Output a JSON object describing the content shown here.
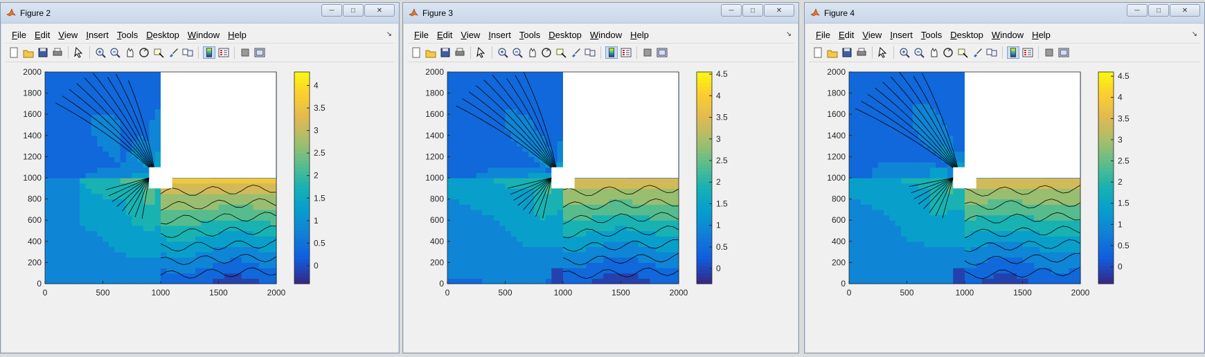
{
  "menu_items": [
    "File",
    "Edit",
    "View",
    "Insert",
    "Tools",
    "Desktop",
    "Window",
    "Help"
  ],
  "toolbar_icons": [
    "new-figure-icon",
    "open-file-icon",
    "save-icon",
    "print-icon",
    "select-arrow-icon",
    "zoom-in-icon",
    "zoom-out-icon",
    "pan-icon",
    "rotate-3d-icon",
    "data-cursor-icon",
    "brush-icon",
    "link-plot-icon",
    "colorbar-icon",
    "legend-icon",
    "hide-plot-tools-icon",
    "show-plot-tools-icon"
  ],
  "windows": [
    {
      "title": "Figure 2",
      "chart_data": {
        "type": "contour",
        "x_ticks": [
          "0",
          "500",
          "1000",
          "1500",
          "2000"
        ],
        "y_ticks": [
          "0",
          "200",
          "400",
          "600",
          "800",
          "1000",
          "1200",
          "1400",
          "1600",
          "1800",
          "2000"
        ],
        "xlim": [
          0,
          2000
        ],
        "ylim": [
          0,
          2000
        ],
        "colorbar_ticks": [
          "0",
          "0.5",
          "1",
          "1.5",
          "2",
          "2.5",
          "3",
          "3.5",
          "4"
        ],
        "colorbar_range": [
          -0.4,
          4.3
        ],
        "colormap": "parula",
        "blank_regions": [
          [
            1000,
            2000,
            1000,
            2000
          ],
          [
            900,
            1000,
            900,
            1100
          ],
          [
            1000,
            1100,
            900,
            1000
          ]
        ]
      }
    },
    {
      "title": "Figure 3",
      "chart_data": {
        "type": "contour",
        "x_ticks": [
          "0",
          "500",
          "1000",
          "1500",
          "2000"
        ],
        "y_ticks": [
          "0",
          "200",
          "400",
          "600",
          "800",
          "1000",
          "1200",
          "1400",
          "1600",
          "1800",
          "2000"
        ],
        "xlim": [
          0,
          2000
        ],
        "ylim": [
          0,
          2000
        ],
        "colorbar_ticks": [
          "0",
          "0.5",
          "1",
          "1.5",
          "2",
          "2.5",
          "3",
          "3.5",
          "4",
          "4.5"
        ],
        "colorbar_range": [
          -0.35,
          4.55
        ],
        "colormap": "parula",
        "blank_regions": [
          [
            1000,
            2000,
            1000,
            2000
          ],
          [
            900,
            1000,
            900,
            1100
          ],
          [
            1000,
            1100,
            900,
            1000
          ]
        ]
      }
    },
    {
      "title": "Figure 4",
      "chart_data": {
        "type": "contour",
        "x_ticks": [
          "0",
          "500",
          "1000",
          "1500",
          "2000"
        ],
        "y_ticks": [
          "0",
          "200",
          "400",
          "600",
          "800",
          "1000",
          "1200",
          "1400",
          "1600",
          "1800",
          "2000"
        ],
        "xlim": [
          0,
          2000
        ],
        "ylim": [
          0,
          2000
        ],
        "colorbar_ticks": [
          "0",
          "0.5",
          "1",
          "1.5",
          "2",
          "2.5",
          "3",
          "3.5",
          "4",
          "4.5"
        ],
        "colorbar_range": [
          -0.4,
          4.6
        ],
        "colormap": "parula",
        "blank_regions": [
          [
            1000,
            2000,
            1000,
            2000
          ],
          [
            900,
            1000,
            900,
            1100
          ],
          [
            1000,
            1100,
            900,
            1000
          ]
        ]
      }
    }
  ]
}
